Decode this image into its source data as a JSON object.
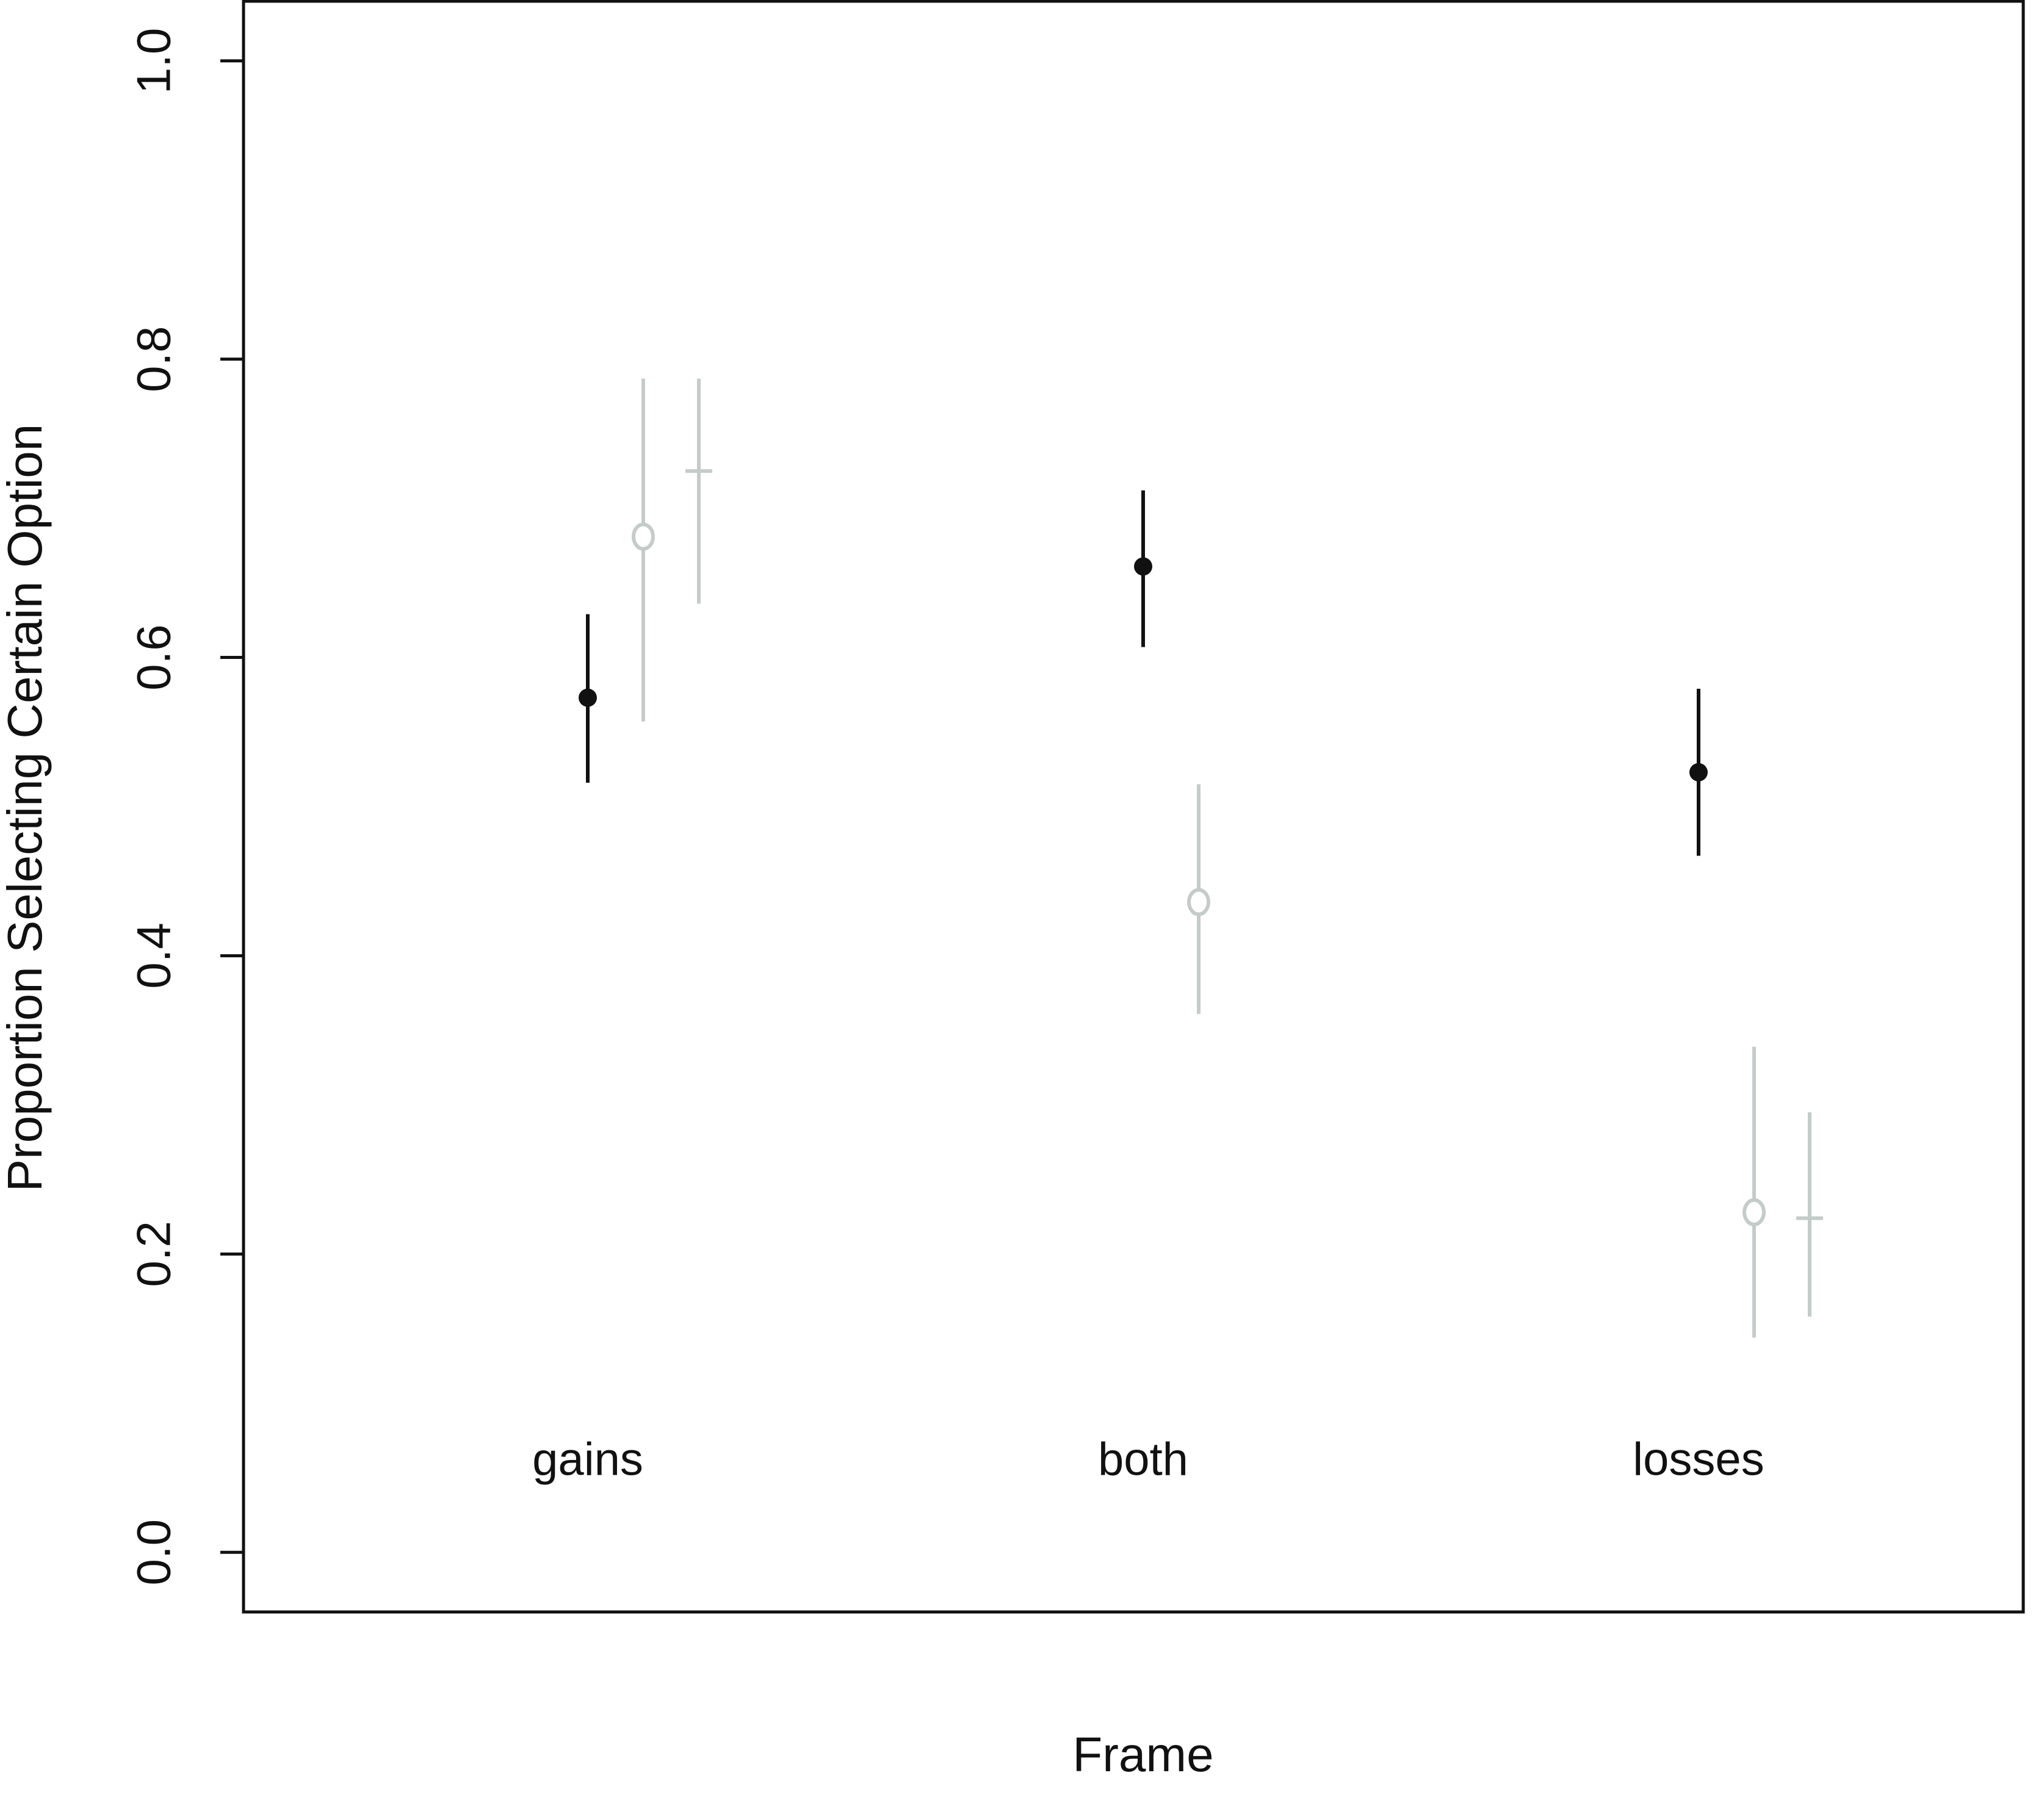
{
  "chart_data": {
    "type": "errorpoint",
    "x_label": "Frame",
    "y_label": "Proportion Selecting Certain Option",
    "categories": [
      "gains",
      "both",
      "losses"
    ],
    "series": [
      {
        "marker": "dot",
        "color": "#111111",
        "values": [
          0.573,
          0.661,
          0.523
        ],
        "lower": [
          0.516,
          0.607,
          0.467
        ],
        "upper": [
          0.629,
          0.712,
          0.579
        ]
      },
      {
        "marker": "o",
        "color": "#c4ccc9",
        "values": [
          0.681,
          0.436,
          0.228
        ],
        "lower": [
          0.557,
          0.361,
          0.144
        ],
        "upper": [
          0.787,
          0.515,
          0.339
        ]
      },
      {
        "marker": "+",
        "color": "#c4ccc9",
        "values": [
          0.725,
          null,
          0.224
        ],
        "lower": [
          0.636,
          null,
          0.158
        ],
        "upper": [
          0.787,
          null,
          0.295
        ]
      }
    ],
    "ylim": [
      -0.04,
      1.04
    ],
    "yticks": [
      {
        "value": 0,
        "label": "0.0"
      },
      0.2,
      0.4,
      0.6,
      0.8,
      {
        "value": 1,
        "label": "1.0"
      }
    ]
  }
}
